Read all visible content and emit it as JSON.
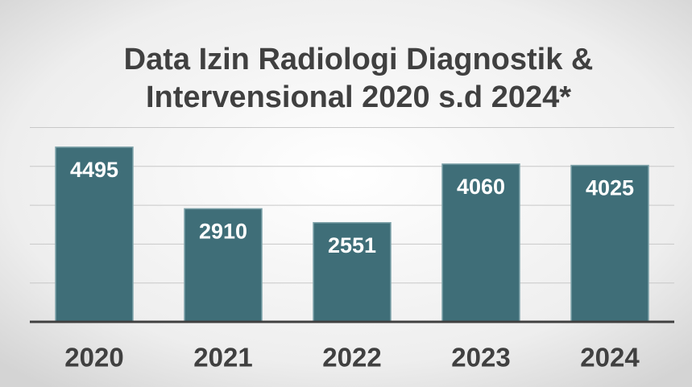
{
  "chart_data": {
    "type": "bar",
    "title": [
      "Data Izin Radiologi Diagnostik &",
      "Intervensional 2020 s.d 2024*"
    ],
    "categories": [
      "2020",
      "2021",
      "2022",
      "2023",
      "2024"
    ],
    "values": [
      4495,
      2910,
      2551,
      4060,
      4025
    ],
    "color": "#3f6e78",
    "ylim": [
      0,
      5000
    ],
    "yticks": [
      0,
      1000,
      2000,
      3000,
      4000,
      5000
    ],
    "grid": true
  }
}
